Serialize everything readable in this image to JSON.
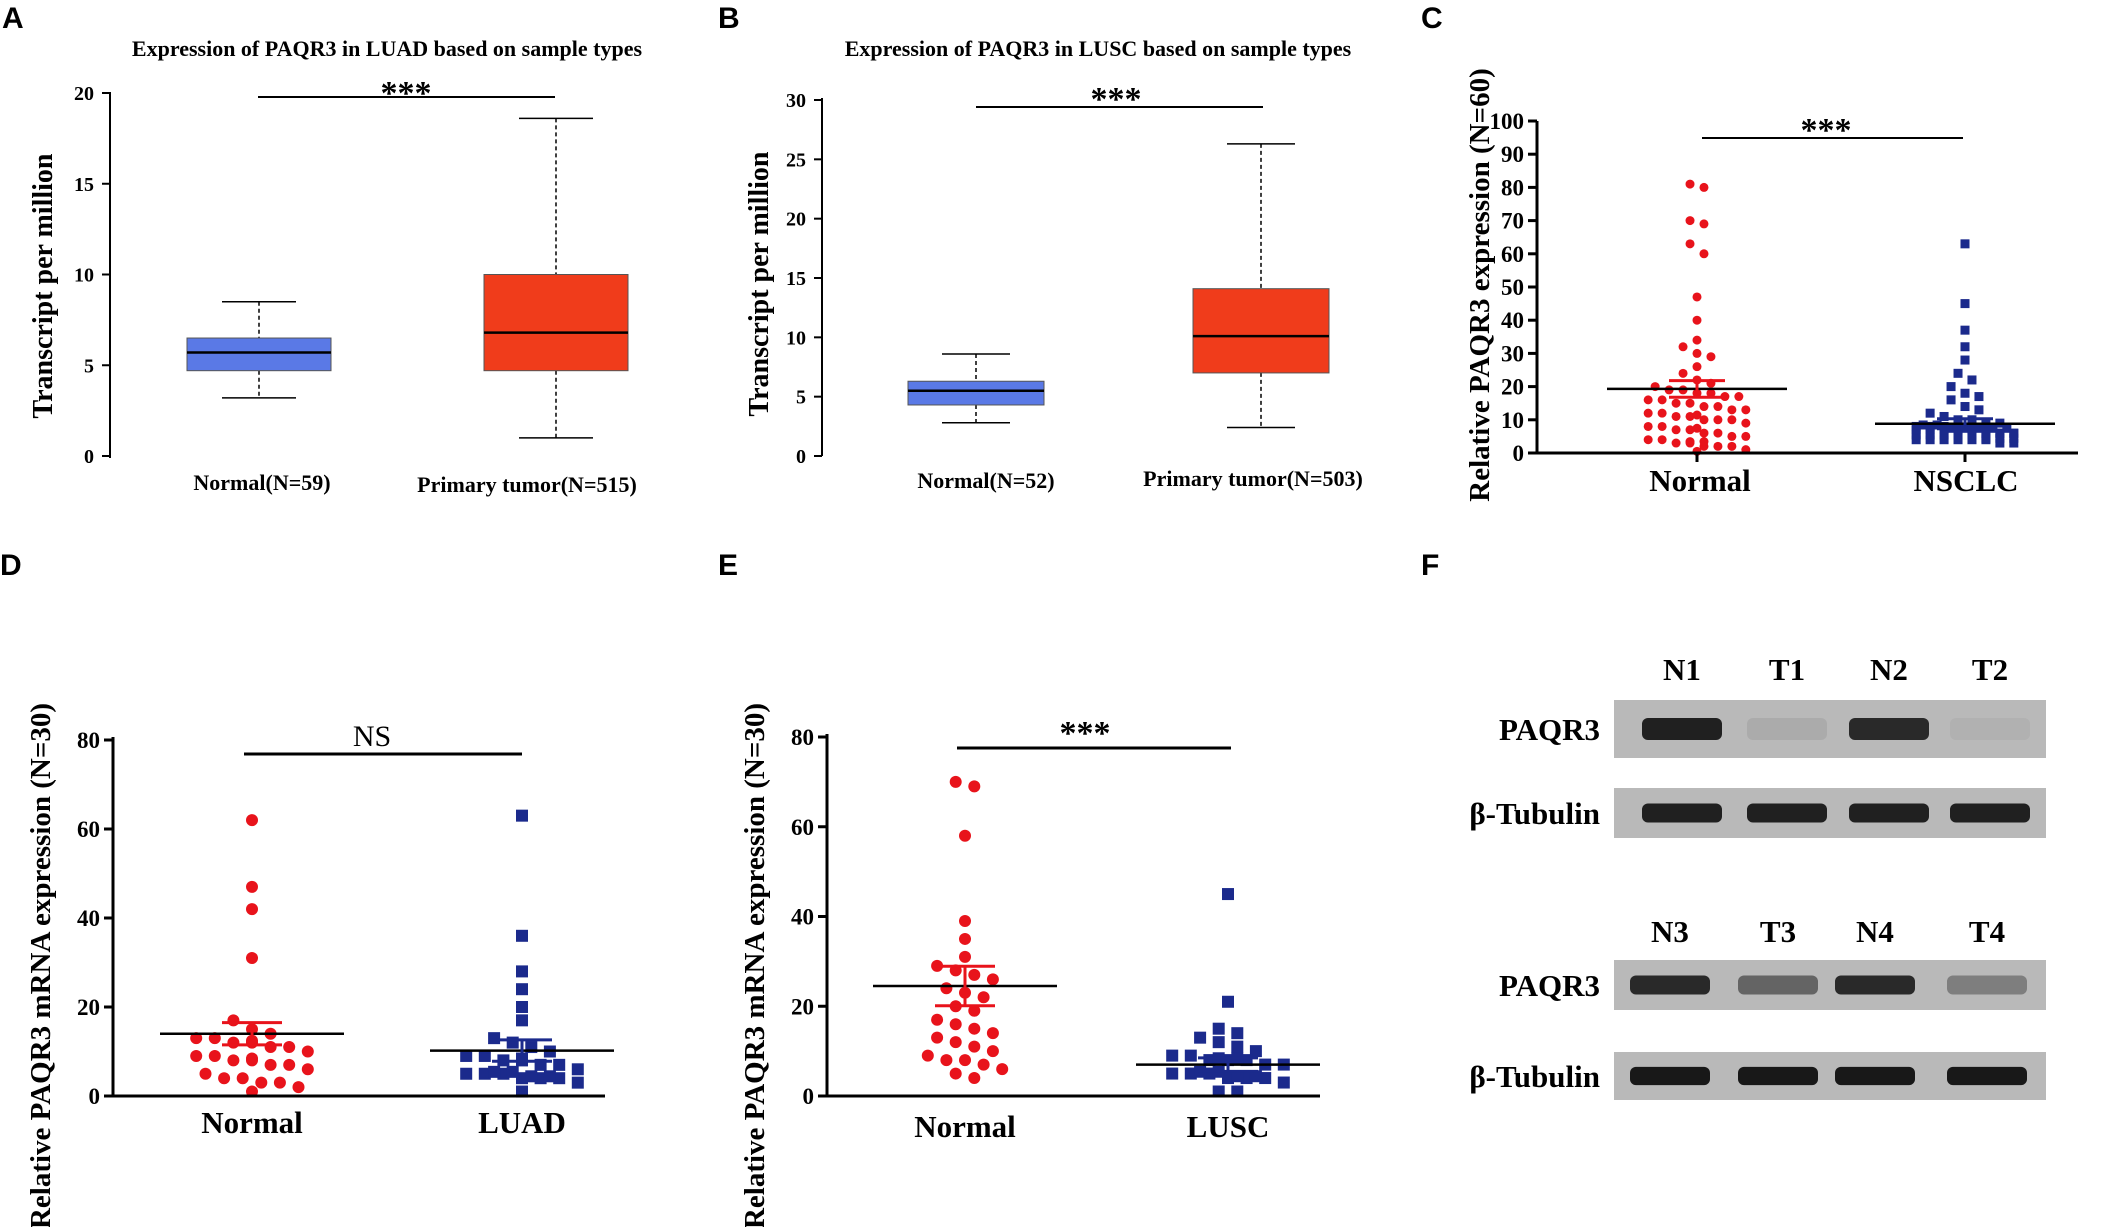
{
  "colors": {
    "normal_box": "#5a79e6",
    "tumor_box": "#f03c1b",
    "red_point": "#e8131b",
    "blue_point": "#1b2a8c",
    "blot_bg": "#b9b9b9",
    "blot_band": "#141414"
  },
  "chart_data": [
    {
      "panel": "A",
      "type": "box",
      "title": "Expression of PAQR3 in LUAD based on sample types",
      "ylabel": "Transcript per million",
      "ylim": [
        0,
        20
      ],
      "yticks": [
        0,
        5,
        10,
        15,
        20
      ],
      "groups": [
        {
          "label": "Normal(N=59)",
          "min": 3.2,
          "q1": 4.7,
          "median": 5.7,
          "q3": 6.5,
          "max": 8.5,
          "color": "#5a79e6"
        },
        {
          "label": "Primary tumor(N=515)",
          "min": 1.0,
          "q1": 4.7,
          "median": 6.8,
          "q3": 10.0,
          "max": 18.6,
          "color": "#f03c1b"
        }
      ],
      "significance": "***"
    },
    {
      "panel": "B",
      "type": "box",
      "title": "Expression of PAQR3 in LUSC based on sample types",
      "ylabel": "Transcript per million",
      "ylim": [
        0,
        30
      ],
      "yticks": [
        0,
        5,
        10,
        15,
        20,
        25,
        30
      ],
      "groups": [
        {
          "label": "Normal(N=52)",
          "min": 2.8,
          "q1": 4.3,
          "median": 5.5,
          "q3": 6.3,
          "max": 8.6,
          "color": "#5a79e6"
        },
        {
          "label": "Primary tumor(N=503)",
          "min": 2.4,
          "q1": 7.0,
          "median": 10.1,
          "q3": 14.1,
          "max": 26.3,
          "color": "#f03c1b"
        }
      ],
      "significance": "***"
    },
    {
      "panel": "C",
      "type": "scatter",
      "ylabel": "Relative PAQR3 expression (N=60)",
      "ylim": [
        0,
        100
      ],
      "yticks": [
        0,
        10,
        20,
        30,
        40,
        50,
        60,
        70,
        80,
        90,
        100
      ],
      "groups": [
        {
          "label": "Normal",
          "marker": "circle",
          "color": "#e8131b",
          "mean": 19.3,
          "sem_upper": 21.8,
          "sem_lower": 16.8,
          "values": [
            81,
            80,
            70,
            69,
            63,
            60,
            47,
            40,
            34,
            32,
            30,
            29,
            26,
            24,
            22,
            21,
            20,
            19,
            19,
            18,
            18,
            17,
            17,
            16,
            16,
            15,
            15,
            14,
            14,
            13,
            13,
            12,
            12,
            11,
            11,
            10,
            10,
            10,
            9,
            9,
            8,
            8,
            7,
            7,
            6,
            6,
            5,
            5,
            5,
            4,
            4,
            3,
            3,
            2,
            2,
            2,
            1,
            1,
            1,
            0.5
          ]
        },
        {
          "label": "NSCLC",
          "marker": "square",
          "color": "#1b2a8c",
          "mean": 8.8,
          "sem_upper": 10.3,
          "sem_lower": 7.3,
          "values": [
            63,
            45,
            37,
            32,
            28,
            24,
            22,
            20,
            18,
            17,
            16,
            14,
            13,
            12,
            11,
            10,
            10,
            9,
            9,
            8,
            8,
            8,
            7,
            7,
            7,
            6,
            6,
            6,
            6,
            5,
            5,
            5,
            5,
            5,
            4,
            4,
            4,
            4,
            4,
            4,
            3,
            3,
            3,
            3,
            3,
            3,
            3,
            2,
            2,
            2,
            2,
            2,
            2,
            2,
            2,
            1,
            1,
            1,
            1,
            1
          ]
        }
      ],
      "significance": "***"
    },
    {
      "panel": "D",
      "type": "scatter",
      "ylabel": "Relative PAQR3 mRNA expression (N=30)",
      "ylim": [
        0,
        80
      ],
      "yticks": [
        0,
        20,
        40,
        60,
        80
      ],
      "groups": [
        {
          "label": "Normal",
          "marker": "circle",
          "color": "#e8131b",
          "mean": 14.0,
          "sem_upper": 16.5,
          "sem_lower": 11.5,
          "values": [
            62,
            47,
            42,
            31,
            17,
            15,
            14,
            13,
            13,
            12,
            12,
            11,
            11,
            10,
            10,
            9,
            9,
            8,
            8,
            7,
            7,
            6,
            6,
            5,
            4,
            4,
            3,
            3,
            2,
            1
          ]
        },
        {
          "label": "LUAD",
          "marker": "square",
          "color": "#1b2a8c",
          "mean": 10.2,
          "sem_upper": 12.6,
          "sem_lower": 7.8,
          "values": [
            63,
            36,
            28,
            24,
            20,
            17,
            13,
            12,
            11,
            10,
            9,
            9,
            8,
            8,
            7,
            7,
            6,
            6,
            5,
            5,
            5,
            4,
            4,
            4,
            3,
            3,
            3,
            2,
            2,
            1
          ]
        }
      ],
      "significance": "NS"
    },
    {
      "panel": "E",
      "type": "scatter",
      "ylabel": "Relative PAQR3 mRNA expression (N=30)",
      "ylim": [
        0,
        80
      ],
      "yticks": [
        0,
        20,
        40,
        60,
        80
      ],
      "groups": [
        {
          "label": "Normal",
          "marker": "circle",
          "color": "#e8131b",
          "mean": 24.5,
          "sem_upper": 28.9,
          "sem_lower": 20.1,
          "values": [
            70,
            69,
            58,
            39,
            35,
            31,
            29,
            28,
            27,
            26,
            24,
            23,
            22,
            20,
            19,
            17,
            16,
            15,
            14,
            13,
            12,
            11,
            10,
            9,
            8,
            8,
            7,
            6,
            5,
            4
          ]
        },
        {
          "label": "LUSC",
          "marker": "square",
          "color": "#1b2a8c",
          "mean": 7.0,
          "sem_upper": 8.5,
          "sem_lower": 5.5,
          "values": [
            45,
            21,
            15,
            14,
            13,
            12,
            11,
            10,
            9,
            9,
            8,
            8,
            8,
            7,
            7,
            6,
            6,
            5,
            5,
            5,
            4,
            4,
            4,
            3,
            3,
            3,
            2,
            2,
            1,
            1
          ]
        }
      ],
      "significance": "***"
    }
  ],
  "panels": {
    "A": {
      "letter": "A",
      "title": "Expression of PAQR3 in LUAD based on sample types",
      "ylabel": "Transcript per million",
      "ticks": [
        "0",
        "5",
        "10",
        "15",
        "20"
      ],
      "cat1": "Normal(N=59)",
      "cat2": "Primary tumor(N=515)",
      "sig": "***"
    },
    "B": {
      "letter": "B",
      "title": "Expression of PAQR3 in LUSC based on sample types",
      "ylabel": "Transcript per million",
      "ticks": [
        "0",
        "5",
        "10",
        "15",
        "20",
        "25",
        "30"
      ],
      "cat1": "Normal(N=52)",
      "cat2": "Primary tumor(N=503)",
      "sig": "***"
    },
    "C": {
      "letter": "C",
      "ylabel": "Relative PAQR3 expression (N=60)",
      "ticks": [
        "0",
        "10",
        "20",
        "30",
        "40",
        "50",
        "60",
        "70",
        "80",
        "90",
        "100"
      ],
      "cat1": "Normal",
      "cat2": "NSCLC",
      "sig": "***"
    },
    "D": {
      "letter": "D",
      "ylabel": "Relative PAQR3 mRNA expression (N=30)",
      "ticks": [
        "0",
        "20",
        "40",
        "60",
        "80"
      ],
      "cat1": "Normal",
      "cat2": "LUAD",
      "sig": "NS"
    },
    "E": {
      "letter": "E",
      "ylabel": "Relative PAQR3 mRNA expression (N=30)",
      "ticks": [
        "0",
        "20",
        "40",
        "60",
        "80"
      ],
      "cat1": "Normal",
      "cat2": "LUSC",
      "sig": "***"
    },
    "F": {
      "letter": "F",
      "blots": [
        {
          "lanes": [
            "N1",
            "T1",
            "N2",
            "T2"
          ],
          "rows": [
            {
              "label": "PAQR3",
              "intensities": [
                0.9,
                0.08,
                0.85,
                0.05
              ]
            },
            {
              "label": "β-Tubulin",
              "intensities": [
                0.9,
                0.9,
                0.9,
                0.9
              ]
            }
          ]
        },
        {
          "lanes": [
            "N3",
            "T3",
            "N4",
            "T4"
          ],
          "rows": [
            {
              "label": "PAQR3",
              "intensities": [
                0.85,
                0.5,
                0.85,
                0.35
              ]
            },
            {
              "label": "β-Tubulin",
              "intensities": [
                0.95,
                0.95,
                0.95,
                0.95
              ]
            }
          ]
        }
      ]
    }
  }
}
